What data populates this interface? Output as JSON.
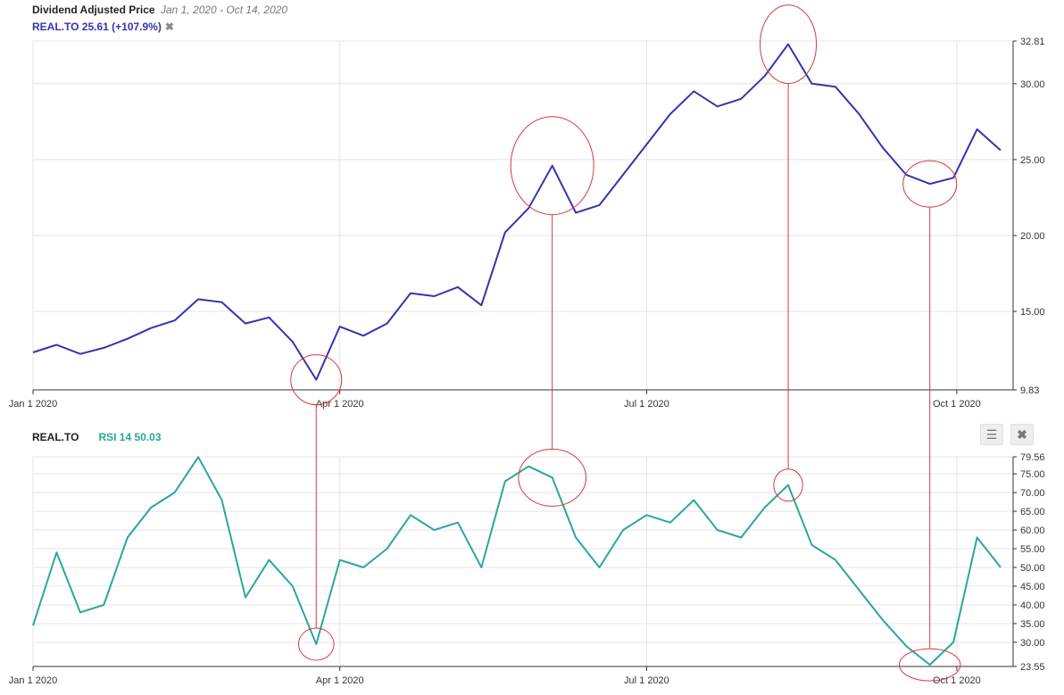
{
  "header": {
    "title": "Dividend Adjusted Price",
    "date_range": "Jan 1, 2020 - Oct 14, 2020",
    "legend": "REAL.TO 25.61 (+107.9%)",
    "remove_icon": "close-icon"
  },
  "rsi_header": {
    "symbol": "REAL.TO",
    "indicator": "RSI 14 50.03",
    "menu_icon": "hamburger-menu-icon",
    "close_icon": "close-icon"
  },
  "colors": {
    "price_line": "#3434b0",
    "rsi_line": "#2aa79b",
    "annotation": "#d83a3a",
    "grid": "#e4e4e4",
    "axis": "#333333"
  },
  "chart_data": [
    {
      "type": "line",
      "name": "price",
      "title": "Dividend Adjusted Price",
      "subtitle": "Jan 1, 2020 - Oct 14, 2020",
      "series": [
        {
          "name": "REAL.TO",
          "x": [
            "2020-01-01",
            "2020-01-08",
            "2020-01-15",
            "2020-01-22",
            "2020-01-29",
            "2020-02-05",
            "2020-02-12",
            "2020-02-19",
            "2020-02-26",
            "2020-03-04",
            "2020-03-11",
            "2020-03-18",
            "2020-03-25",
            "2020-04-01",
            "2020-04-08",
            "2020-04-15",
            "2020-04-22",
            "2020-04-29",
            "2020-05-06",
            "2020-05-13",
            "2020-05-20",
            "2020-05-27",
            "2020-06-03",
            "2020-06-10",
            "2020-06-17",
            "2020-06-24",
            "2020-07-01",
            "2020-07-08",
            "2020-07-15",
            "2020-07-22",
            "2020-07-29",
            "2020-08-05",
            "2020-08-12",
            "2020-08-19",
            "2020-08-26",
            "2020-09-02",
            "2020-09-09",
            "2020-09-16",
            "2020-09-23",
            "2020-09-30",
            "2020-10-07",
            "2020-10-14"
          ],
          "values": [
            12.3,
            12.8,
            12.2,
            12.6,
            13.2,
            13.9,
            14.4,
            15.8,
            15.6,
            14.2,
            14.6,
            13.0,
            10.5,
            14.0,
            13.4,
            14.2,
            16.2,
            16.0,
            16.6,
            15.4,
            20.2,
            21.8,
            24.6,
            21.5,
            22.0,
            24.0,
            26.0,
            28.0,
            29.5,
            28.5,
            29.0,
            30.5,
            32.6,
            30.0,
            29.8,
            28.0,
            25.8,
            24.0,
            23.4,
            23.8,
            27.0,
            25.61
          ]
        }
      ],
      "y_ticks": [
        "32.81",
        "30.00",
        "25.00",
        "20.00",
        "15.00",
        "9.83"
      ],
      "x_ticks": [
        "Jan 1 2020",
        "Apr 1 2020",
        "Jul 1 2020",
        "Oct 1 2020"
      ],
      "ylim": [
        9.83,
        32.81
      ],
      "grid": true,
      "axis_position": "right"
    },
    {
      "type": "line",
      "name": "rsi",
      "series": [
        {
          "name": "RSI 14",
          "x": [
            "2020-01-01",
            "2020-01-08",
            "2020-01-15",
            "2020-01-22",
            "2020-01-29",
            "2020-02-05",
            "2020-02-12",
            "2020-02-19",
            "2020-02-26",
            "2020-03-04",
            "2020-03-11",
            "2020-03-18",
            "2020-03-25",
            "2020-04-01",
            "2020-04-08",
            "2020-04-15",
            "2020-04-22",
            "2020-04-29",
            "2020-05-06",
            "2020-05-13",
            "2020-05-20",
            "2020-05-27",
            "2020-06-03",
            "2020-06-10",
            "2020-06-17",
            "2020-06-24",
            "2020-07-01",
            "2020-07-08",
            "2020-07-15",
            "2020-07-22",
            "2020-07-29",
            "2020-08-05",
            "2020-08-12",
            "2020-08-19",
            "2020-08-26",
            "2020-09-02",
            "2020-09-09",
            "2020-09-16",
            "2020-09-23",
            "2020-09-30",
            "2020-10-07",
            "2020-10-14"
          ],
          "values": [
            34.5,
            54.0,
            38.0,
            40.0,
            58.0,
            66.0,
            70.0,
            79.5,
            68.0,
            42.0,
            52.0,
            45.0,
            29.5,
            52.0,
            50.0,
            55.0,
            64.0,
            60.0,
            62.0,
            50.0,
            73.0,
            77.0,
            74.0,
            58.0,
            50.0,
            60.0,
            64.0,
            62.0,
            68.0,
            60.0,
            58.0,
            66.0,
            72.0,
            56.0,
            52.0,
            44.0,
            36.0,
            29.0,
            24.0,
            30.0,
            58.0,
            50.03
          ]
        }
      ],
      "y_ticks": [
        "79.56",
        "75.00",
        "70.00",
        "65.00",
        "60.00",
        "55.00",
        "50.00",
        "45.00",
        "40.00",
        "35.00",
        "30.00",
        "23.55"
      ],
      "x_ticks": [
        "Jan 1 2020",
        "Apr 1 2020",
        "Jul 1 2020",
        "Oct 1 2020"
      ],
      "ylim": [
        23.55,
        79.56
      ],
      "grid": true,
      "axis_position": "right"
    }
  ]
}
